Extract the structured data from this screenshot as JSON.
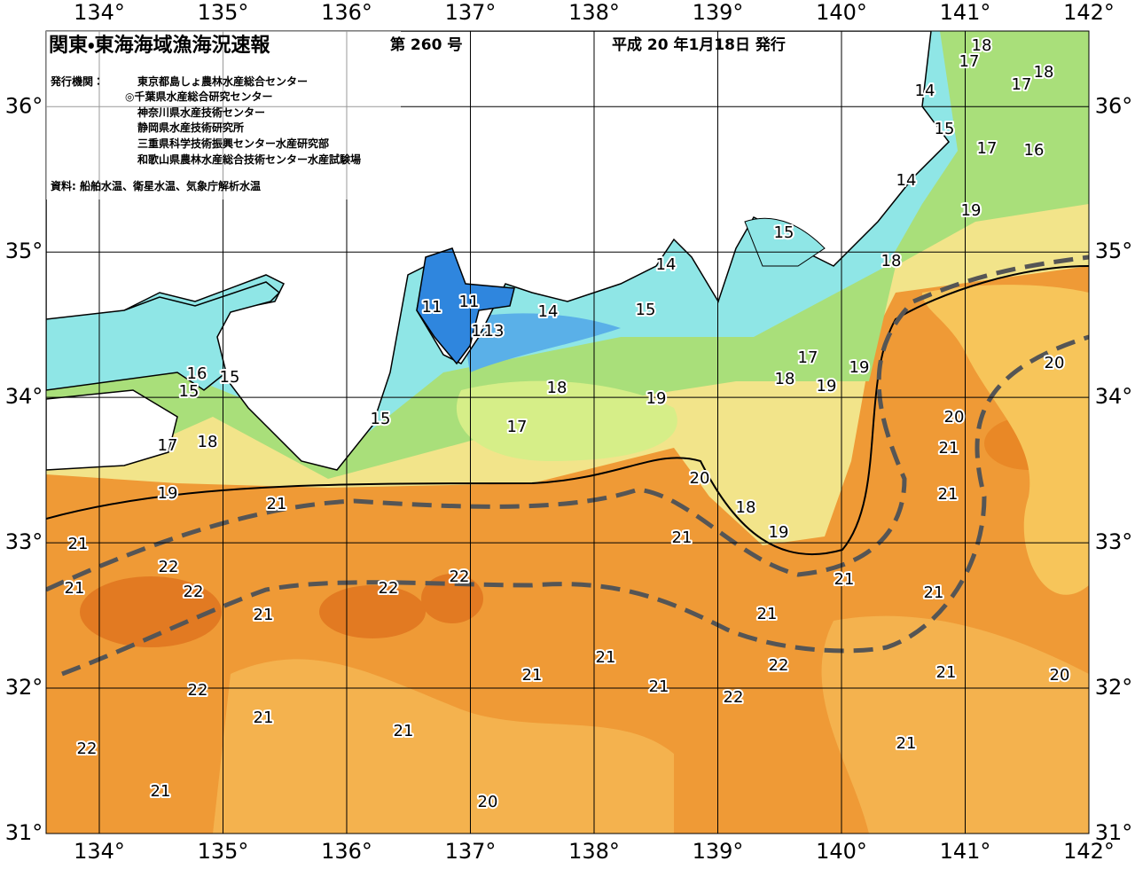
{
  "header": {
    "title": "関東・東海海域漁海況速報",
    "issue": "第 260 号",
    "date": "平成 20 年1月18日 発行",
    "agencies_label": "発行機関：",
    "agencies": [
      "東京都島しょ農林水産総合センター",
      "◎千葉県水産総合研究センター",
      "神奈川県水産技術センター",
      "静岡県水産技術研究所",
      "三重県科学技術振興センター水産研究部",
      "和歌山県農林水産総合技術センター水産試験場"
    ],
    "source": "資料: 船舶水温、衛星水温、気象庁解析水温"
  },
  "map": {
    "lon_range": [
      133.57,
      142
    ],
    "lat_range": [
      31,
      36.52
    ],
    "lon_ticks": [
      {
        "value": 134,
        "label": "134°"
      },
      {
        "value": 135,
        "label": "135°"
      },
      {
        "value": 136,
        "label": "136°"
      },
      {
        "value": 137,
        "label": "137°"
      },
      {
        "value": 138,
        "label": "138°"
      },
      {
        "value": 139,
        "label": "139°"
      },
      {
        "value": 140,
        "label": "140°"
      },
      {
        "value": 141,
        "label": "141°"
      },
      {
        "value": 142,
        "label": "142°"
      }
    ],
    "lat_ticks": [
      {
        "value": 31,
        "label": "31°"
      },
      {
        "value": 32,
        "label": "32°"
      },
      {
        "value": 33,
        "label": "33°"
      },
      {
        "value": 34,
        "label": "34°"
      },
      {
        "value": 35,
        "label": "35°"
      },
      {
        "value": 36,
        "label": "36°"
      }
    ],
    "contour_labels": [
      18,
      17,
      18,
      17,
      14,
      15,
      17,
      16,
      14,
      19,
      15,
      18,
      14,
      15,
      14,
      11,
      11,
      12,
      13,
      17,
      19,
      18,
      19,
      16,
      15,
      15,
      18,
      19,
      15,
      17,
      17,
      18,
      20,
      20,
      21,
      20,
      19,
      21,
      21,
      18,
      19,
      21,
      21,
      22,
      21,
      22,
      22,
      22,
      21,
      21,
      21,
      21,
      21,
      22,
      21,
      21,
      20,
      22,
      21,
      22,
      21,
      21,
      21,
      22,
      21,
      20
    ]
  }
}
